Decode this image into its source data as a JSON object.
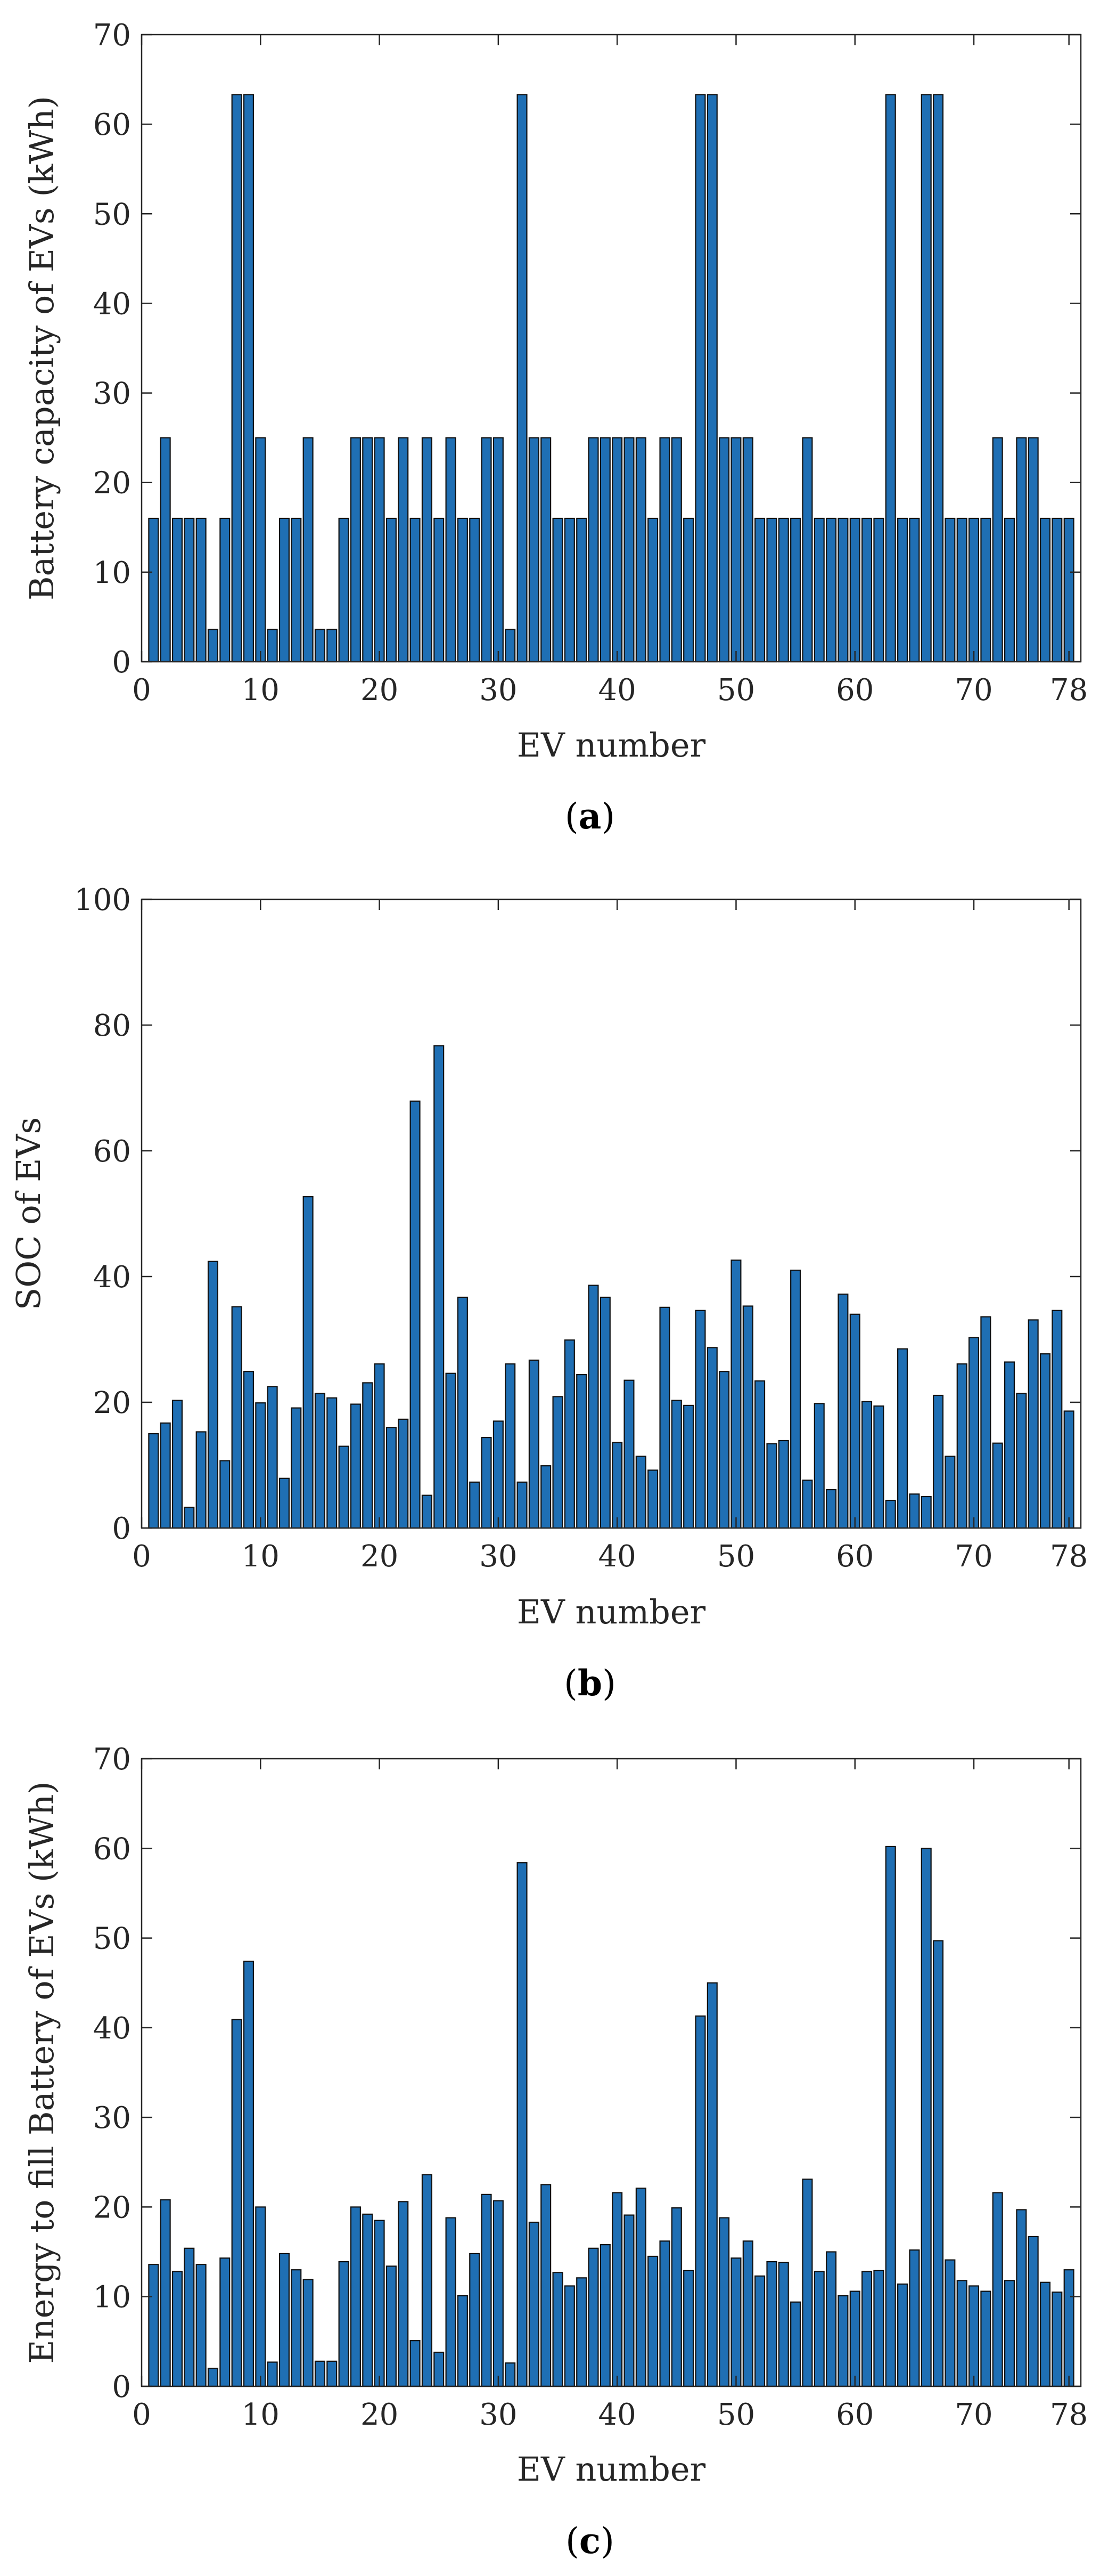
{
  "chart_data": [
    {
      "type": "bar",
      "caption": "a",
      "xlabel": "EV number",
      "ylabel": "Battery capacity of EVs (kWh)",
      "xlim": [
        0,
        79
      ],
      "ylim": [
        0,
        70
      ],
      "xticks": [
        0,
        10,
        20,
        30,
        40,
        50,
        60,
        70,
        78
      ],
      "yticks": [
        0,
        10,
        20,
        30,
        40,
        50,
        60,
        70
      ],
      "grid": false,
      "bar_color": "#1f6fb4",
      "x": [
        1,
        2,
        3,
        4,
        5,
        6,
        7,
        8,
        9,
        10,
        11,
        12,
        13,
        14,
        15,
        16,
        17,
        18,
        19,
        20,
        21,
        22,
        23,
        24,
        25,
        26,
        27,
        28,
        29,
        30,
        31,
        32,
        33,
        34,
        35,
        36,
        37,
        38,
        39,
        40,
        41,
        42,
        43,
        44,
        45,
        46,
        47,
        48,
        49,
        50,
        51,
        52,
        53,
        54,
        55,
        56,
        57,
        58,
        59,
        60,
        61,
        62,
        63,
        64,
        65,
        66,
        67,
        68,
        69,
        70,
        71,
        72,
        73,
        74,
        75,
        76,
        77,
        78
      ],
      "values": [
        16,
        25,
        16,
        16,
        16,
        3.6,
        16,
        63.3,
        63.3,
        25,
        3.6,
        16,
        16,
        25,
        3.6,
        3.6,
        16,
        25,
        25,
        25,
        16,
        25,
        16,
        25,
        16,
        25,
        16,
        16,
        25,
        25,
        3.6,
        63.3,
        25,
        25,
        16,
        16,
        16,
        25,
        25,
        25,
        25,
        25,
        16,
        25,
        25,
        16,
        63.3,
        63.3,
        25,
        25,
        25,
        16,
        16,
        16,
        16,
        25,
        16,
        16,
        16,
        16,
        16,
        16,
        63.3,
        16,
        16,
        63.3,
        63.3,
        16,
        16,
        16,
        16,
        25,
        16,
        25,
        25,
        16,
        16,
        16
      ]
    },
    {
      "type": "bar",
      "caption": "b",
      "xlabel": "EV number",
      "ylabel": "SOC of EVs",
      "xlim": [
        0,
        79
      ],
      "ylim": [
        0,
        100
      ],
      "xticks": [
        0,
        10,
        20,
        30,
        40,
        50,
        60,
        70,
        78
      ],
      "yticks": [
        0,
        20,
        40,
        60,
        80,
        100
      ],
      "grid": false,
      "bar_color": "#1f6fb4",
      "x": [
        1,
        2,
        3,
        4,
        5,
        6,
        7,
        8,
        9,
        10,
        11,
        12,
        13,
        14,
        15,
        16,
        17,
        18,
        19,
        20,
        21,
        22,
        23,
        24,
        25,
        26,
        27,
        28,
        29,
        30,
        31,
        32,
        33,
        34,
        35,
        36,
        37,
        38,
        39,
        40,
        41,
        42,
        43,
        44,
        45,
        46,
        47,
        48,
        49,
        50,
        51,
        52,
        53,
        54,
        55,
        56,
        57,
        58,
        59,
        60,
        61,
        62,
        63,
        64,
        65,
        66,
        67,
        68,
        69,
        70,
        71,
        72,
        73,
        74,
        75,
        76,
        77,
        78
      ],
      "values": [
        15,
        16.7,
        20.3,
        3.3,
        15.3,
        42.4,
        10.7,
        35.2,
        24.9,
        19.9,
        22.5,
        7.9,
        19.1,
        52.7,
        21.4,
        20.7,
        13,
        19.7,
        23.1,
        26.1,
        16,
        17.3,
        67.9,
        5.2,
        76.7,
        24.6,
        36.7,
        7.3,
        14.4,
        17,
        26.1,
        7.3,
        26.7,
        9.9,
        20.9,
        29.9,
        24.4,
        38.6,
        36.7,
        13.6,
        23.5,
        11.4,
        9.2,
        35.1,
        20.3,
        19.5,
        34.6,
        28.7,
        24.9,
        42.6,
        35.3,
        23.4,
        13.4,
        13.9,
        41,
        7.6,
        19.8,
        6.1,
        37.2,
        34,
        20.1,
        19.4,
        4.4,
        28.5,
        5.4,
        5,
        21.1,
        11.4,
        26.1,
        30.3,
        33.6,
        13.5,
        26.4,
        21.4,
        33.1,
        27.7,
        34.6,
        18.6
      ]
    },
    {
      "type": "bar",
      "caption": "c",
      "xlabel": "EV number",
      "ylabel": "Energy to fill Battery of EVs (kWh)",
      "xlim": [
        0,
        79
      ],
      "ylim": [
        0,
        70
      ],
      "xticks": [
        0,
        10,
        20,
        30,
        40,
        50,
        60,
        70,
        78
      ],
      "yticks": [
        0,
        10,
        20,
        30,
        40,
        50,
        60,
        70
      ],
      "grid": false,
      "bar_color": "#1f6fb4",
      "x": [
        1,
        2,
        3,
        4,
        5,
        6,
        7,
        8,
        9,
        10,
        11,
        12,
        13,
        14,
        15,
        16,
        17,
        18,
        19,
        20,
        21,
        22,
        23,
        24,
        25,
        26,
        27,
        28,
        29,
        30,
        31,
        32,
        33,
        34,
        35,
        36,
        37,
        38,
        39,
        40,
        41,
        42,
        43,
        44,
        45,
        46,
        47,
        48,
        49,
        50,
        51,
        52,
        53,
        54,
        55,
        56,
        57,
        58,
        59,
        60,
        61,
        62,
        63,
        64,
        65,
        66,
        67,
        68,
        69,
        70,
        71,
        72,
        73,
        74,
        75,
        76,
        77,
        78
      ],
      "values": [
        13.6,
        20.8,
        12.8,
        15.4,
        13.6,
        2,
        14.3,
        40.9,
        47.4,
        20,
        2.7,
        14.8,
        13,
        11.9,
        2.8,
        2.8,
        13.9,
        20,
        19.2,
        18.5,
        13.4,
        20.6,
        5.1,
        23.6,
        3.8,
        18.8,
        10.1,
        14.8,
        21.4,
        20.7,
        2.6,
        58.4,
        18.3,
        22.5,
        12.7,
        11.2,
        12.1,
        15.4,
        15.8,
        21.6,
        19.1,
        22.1,
        14.5,
        16.2,
        19.9,
        12.9,
        41.3,
        45,
        18.8,
        14.3,
        16.2,
        12.3,
        13.9,
        13.8,
        9.4,
        23.1,
        12.8,
        15,
        10.1,
        10.6,
        12.8,
        12.9,
        60.2,
        11.4,
        15.2,
        60,
        49.7,
        14.1,
        11.8,
        11.2,
        10.6,
        21.6,
        11.8,
        19.7,
        16.7,
        11.6,
        10.5,
        13
      ]
    }
  ]
}
